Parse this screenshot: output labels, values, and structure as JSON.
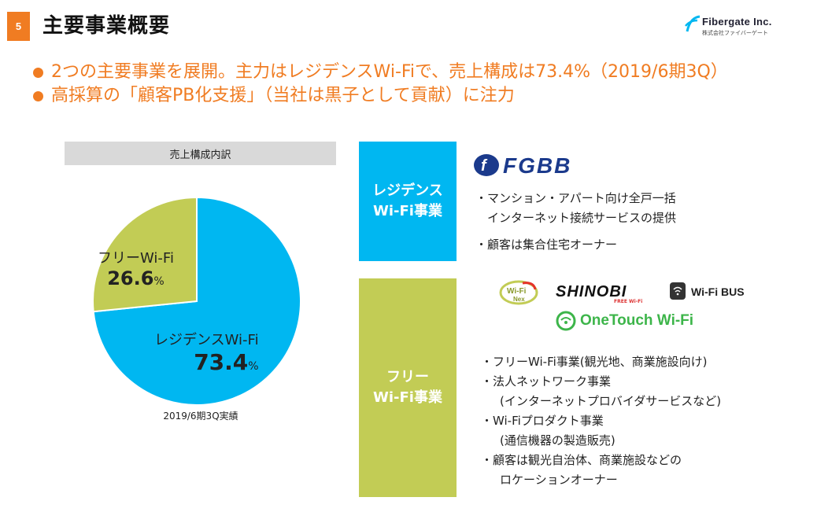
{
  "page": {
    "number": "5",
    "title": "主要事業概要"
  },
  "company": {
    "name": "Fibergate Inc.",
    "sub": "株式会社ファイバーゲート",
    "brand_color": "#00b7f1"
  },
  "bullets": [
    "2つの主要事業を展開。主力はレジデンスWi-Fiで、売上構成は73.4%（2019/6期3Q）",
    "高採算の「顧客PB化支援」（当社は黒子として貢献）に注力"
  ],
  "pie": {
    "header": "売上構成内訳",
    "caption": "2019/6期3Q実績"
  },
  "chart_data": {
    "type": "pie",
    "slices": [
      {
        "name": "レジデンスWi-Fi",
        "value": 73.4,
        "color": "#00b7f1"
      },
      {
        "name": "フリーWi-Fi",
        "value": 26.6,
        "color": "#c2cc55"
      }
    ],
    "unit": "%"
  },
  "businesses": {
    "residence": {
      "box_lines": [
        "レジデンス",
        "Wi-Fi事業"
      ],
      "brand": "FGBB",
      "desc_lines": [
        "・マンション・アパート向け全戸一括",
        "　インターネット接続サービスの提供",
        "・顧客は集合住宅オーナー"
      ]
    },
    "free": {
      "box_lines": [
        "フリー",
        "Wi-Fi事業"
      ],
      "brands": {
        "wifinex_a": "Wi-Fi",
        "wifinex_b": "Nex",
        "shinobi": "SHINOBI",
        "shinobi_sub": "FREE Wi-Fi",
        "wifibus": "Wi-Fi BUS",
        "onetouch": "OneTouch Wi-Fi"
      },
      "desc_lines": [
        "・フリーWi-Fi事業(観光地、商業施設向け)",
        "・法人ネットワーク事業",
        "(インターネットプロバイダサービスなど)",
        "・Wi-Fiプロダクト事業",
        "(通信機器の製造販売)",
        "・顧客は観光自治体、商業施設などの",
        "ロケーションオーナー"
      ]
    }
  }
}
